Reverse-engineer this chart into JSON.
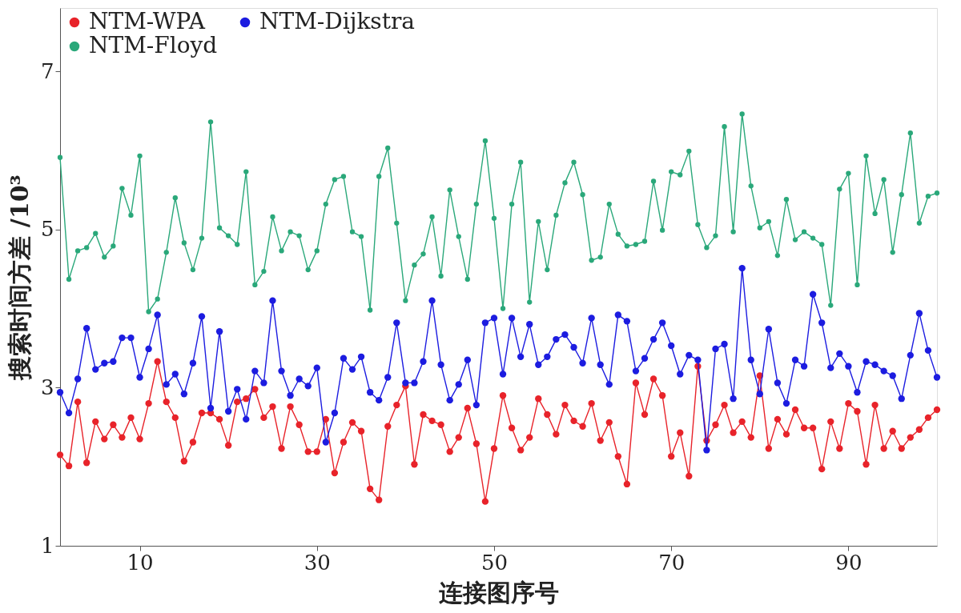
{
  "chart_data": {
    "type": "line",
    "xlabel": "连接图序号",
    "ylabel": "搜索时间方差 /10³",
    "x": [
      1,
      2,
      3,
      4,
      5,
      6,
      7,
      8,
      9,
      10,
      11,
      12,
      13,
      14,
      15,
      16,
      17,
      18,
      19,
      20,
      21,
      22,
      23,
      24,
      25,
      26,
      27,
      28,
      29,
      30,
      31,
      32,
      33,
      34,
      35,
      36,
      37,
      38,
      39,
      40,
      41,
      42,
      43,
      44,
      45,
      46,
      47,
      48,
      49,
      50,
      51,
      52,
      53,
      54,
      55,
      56,
      57,
      58,
      59,
      60,
      61,
      62,
      63,
      64,
      65,
      66,
      67,
      68,
      69,
      70,
      71,
      72,
      73,
      74,
      75,
      76,
      77,
      78,
      79,
      80,
      81,
      82,
      83,
      84,
      85,
      86,
      87,
      88,
      89,
      90,
      91,
      92,
      93,
      94,
      95,
      96,
      97,
      98,
      99,
      100
    ],
    "series": [
      {
        "name": "NTM-WPA",
        "color": "#e8232a",
        "values": [
          2.15,
          2.01,
          2.82,
          2.05,
          2.57,
          2.35,
          2.53,
          2.37,
          2.62,
          2.35,
          2.8,
          3.33,
          2.82,
          2.62,
          2.07,
          2.31,
          2.68,
          2.68,
          2.6,
          2.27,
          2.82,
          2.86,
          2.98,
          2.62,
          2.76,
          2.23,
          2.76,
          2.53,
          2.19,
          2.19,
          2.6,
          1.92,
          2.31,
          2.56,
          2.45,
          1.72,
          1.58,
          2.51,
          2.78,
          3.02,
          2.03,
          2.66,
          2.58,
          2.53,
          2.19,
          2.37,
          2.74,
          2.29,
          1.56,
          2.23,
          2.9,
          2.49,
          2.21,
          2.37,
          2.86,
          2.66,
          2.41,
          2.78,
          2.58,
          2.51,
          2.8,
          2.33,
          2.56,
          2.13,
          1.78,
          3.06,
          2.66,
          3.11,
          2.9,
          2.13,
          2.43,
          1.88,
          3.27,
          2.33,
          2.53,
          2.78,
          2.43,
          2.57,
          2.37,
          3.15,
          2.23,
          2.6,
          2.41,
          2.72,
          2.49,
          2.49,
          1.97,
          2.57,
          2.23,
          2.8,
          2.7,
          2.03,
          2.78,
          2.23,
          2.45,
          2.23,
          2.37,
          2.47,
          2.62,
          2.72
        ]
      },
      {
        "name": "NTM-Dijkstra",
        "color": "#1c1ce0",
        "values": [
          2.94,
          2.68,
          3.11,
          3.75,
          3.23,
          3.31,
          3.33,
          3.63,
          3.63,
          3.13,
          3.49,
          3.92,
          3.04,
          3.17,
          2.92,
          3.31,
          3.9,
          2.74,
          3.71,
          2.7,
          2.98,
          2.6,
          3.21,
          3.06,
          4.1,
          3.21,
          2.9,
          3.11,
          3.02,
          3.25,
          2.31,
          2.68,
          3.37,
          3.23,
          3.39,
          2.94,
          2.84,
          3.13,
          3.82,
          3.06,
          3.06,
          3.33,
          4.1,
          3.29,
          2.84,
          3.04,
          3.35,
          2.78,
          3.82,
          3.88,
          3.17,
          3.88,
          3.39,
          3.8,
          3.29,
          3.39,
          3.61,
          3.67,
          3.51,
          3.31,
          3.88,
          3.29,
          3.04,
          3.92,
          3.84,
          3.21,
          3.37,
          3.61,
          3.82,
          3.53,
          3.17,
          3.41,
          3.35,
          2.21,
          3.49,
          3.55,
          2.86,
          4.51,
          3.35,
          2.92,
          3.74,
          3.06,
          2.8,
          3.35,
          3.27,
          4.18,
          3.82,
          3.25,
          3.43,
          3.27,
          2.94,
          3.33,
          3.29,
          3.21,
          3.15,
          2.86,
          3.41,
          3.94,
          3.47,
          3.13
        ]
      },
      {
        "name": "NTM-Floyd",
        "color": "#2aa87a",
        "values": [
          5.91,
          4.37,
          4.73,
          4.77,
          4.95,
          4.65,
          4.79,
          5.52,
          5.18,
          5.93,
          3.96,
          4.12,
          4.71,
          5.4,
          4.83,
          4.49,
          4.89,
          6.36,
          5.02,
          4.92,
          4.81,
          5.73,
          4.3,
          4.47,
          5.16,
          4.73,
          4.97,
          4.92,
          4.49,
          4.73,
          5.32,
          5.63,
          5.67,
          4.97,
          4.91,
          3.98,
          5.67,
          6.03,
          5.08,
          4.1,
          4.55,
          4.69,
          5.16,
          4.41,
          5.5,
          4.91,
          4.37,
          5.32,
          6.12,
          5.14,
          4.0,
          5.32,
          5.85,
          4.08,
          5.1,
          4.49,
          5.18,
          5.59,
          5.85,
          5.44,
          4.61,
          4.65,
          5.32,
          4.94,
          4.79,
          4.81,
          4.85,
          5.61,
          4.99,
          5.73,
          5.69,
          5.99,
          5.06,
          4.77,
          4.92,
          6.3,
          4.97,
          6.46,
          5.55,
          5.02,
          5.1,
          4.67,
          5.38,
          4.87,
          4.97,
          4.89,
          4.81,
          4.04,
          5.51,
          5.71,
          4.3,
          5.93,
          5.2,
          5.63,
          4.71,
          5.44,
          6.22,
          5.08,
          5.42,
          5.46
        ]
      }
    ],
    "xlim": [
      1,
      100
    ],
    "xticks": [
      10,
      30,
      50,
      70,
      90
    ],
    "ylim": [
      1,
      7.8
    ],
    "yticks": [
      1,
      3,
      5,
      7
    ],
    "grid": false,
    "legend": "top left",
    "marker": "circle",
    "line_style": "solid"
  }
}
